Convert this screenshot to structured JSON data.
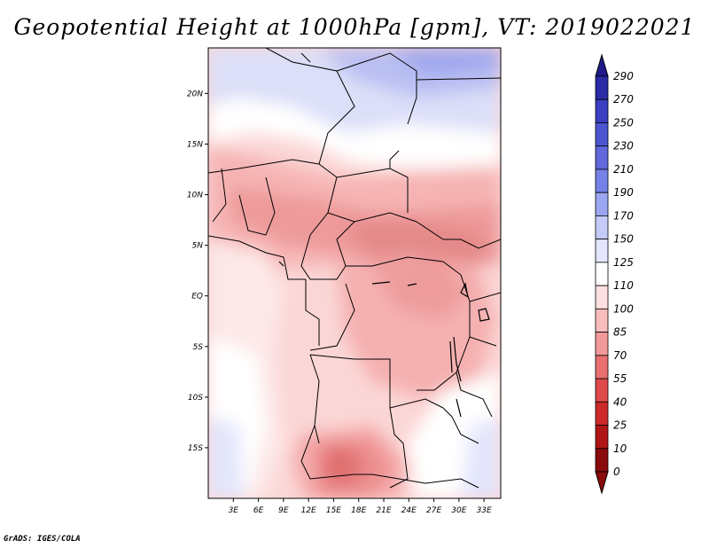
{
  "title": "Geopotential Height at 1000hPa [gpm], VT: 2019022021",
  "credit": "GrADS: IGES/COLA",
  "map": {
    "region": "Central and Southern Africa",
    "lat_ticks": [
      "20N",
      "15N",
      "10N",
      "5N",
      "EQ",
      "5S",
      "10S",
      "15S"
    ],
    "lat_values": [
      20,
      15,
      10,
      5,
      0,
      -5,
      -10,
      -15
    ],
    "lon_ticks": [
      "3E",
      "6E",
      "9E",
      "12E",
      "15E",
      "18E",
      "21E",
      "24E",
      "27E",
      "30E",
      "33E"
    ],
    "lon_values": [
      3,
      6,
      9,
      12,
      15,
      18,
      21,
      24,
      27,
      30,
      33
    ],
    "lon_range": [
      0,
      35
    ],
    "lat_range": [
      -20,
      24.5
    ]
  },
  "colorbar": {
    "levels": [
      "290",
      "270",
      "250",
      "230",
      "210",
      "190",
      "170",
      "150",
      "125",
      "110",
      "100",
      "85",
      "70",
      "55",
      "40",
      "25",
      "10",
      "0"
    ],
    "colors": [
      "#1f1a8a",
      "#2b2ba6",
      "#3a3ec0",
      "#4d55d2",
      "#6068dc",
      "#7581e6",
      "#9aa6f0",
      "#c4cbf8",
      "#e3e6fc",
      "#ffffff",
      "#fde0e0",
      "#f9bcbc",
      "#f29898",
      "#e97070",
      "#de4a4a",
      "#cc2a2a",
      "#b01515",
      "#8a0b0b"
    ]
  }
}
